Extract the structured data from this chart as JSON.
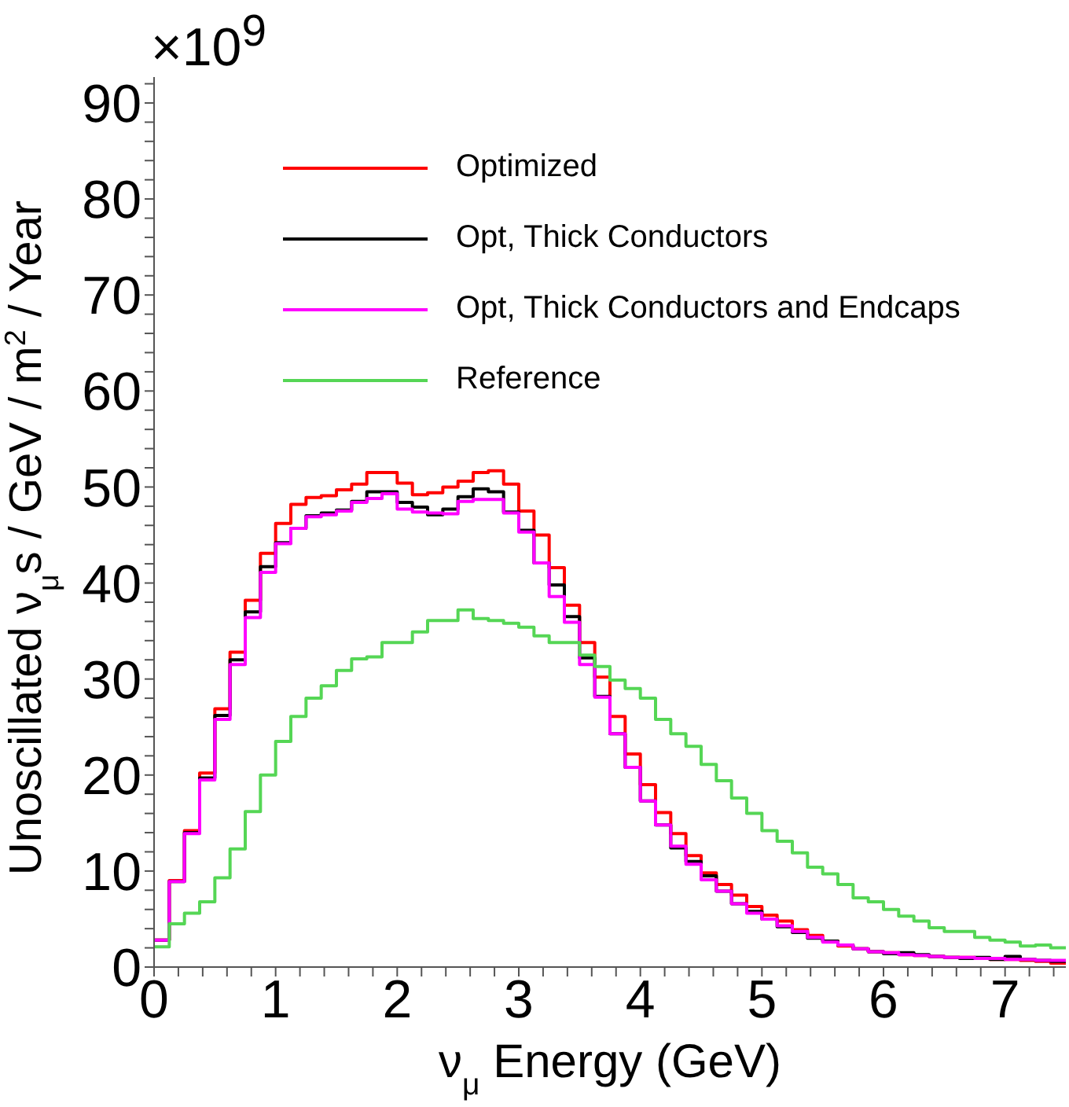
{
  "chart_data": {
    "type": "histogram",
    "xlabel": "ν$_{μ}$ Energy (GeV)",
    "ylabel": "Unoscillated ν$_{μ}$s / GeV / m$^{2}$ / Year",
    "annotations": [
      "×10$^{9}$"
    ],
    "bins": [
      0,
      0.125,
      0.25,
      0.375,
      0.5,
      0.625,
      0.75,
      0.875,
      1,
      1.125,
      1.25,
      1.375,
      1.5,
      1.625,
      1.75,
      1.875,
      2,
      2.125,
      2.25,
      2.375,
      2.5,
      2.625,
      2.75,
      2.875,
      3,
      3.125,
      3.25,
      3.375,
      3.5,
      3.625,
      3.75,
      3.875,
      4,
      4.125,
      4.25,
      4.375,
      4.5,
      4.625,
      4.75,
      4.875,
      5,
      5.125,
      5.25,
      5.375,
      5.5,
      5.625,
      5.75,
      5.875,
      6,
      6.125,
      6.25,
      6.375,
      6.5,
      6.625,
      6.75,
      6.875,
      7,
      7.125,
      7.25,
      7.375,
      7.5
    ],
    "series": [
      {
        "name": "Optimized",
        "color": "#ff0000",
        "values": [
          2.8,
          9.0,
          14.2,
          20.2,
          26.9,
          32.8,
          38.2,
          43.1,
          46.2,
          48.2,
          48.9,
          49.1,
          49.7,
          50.3,
          51.5,
          51.5,
          50.4,
          49.2,
          49.4,
          50.0,
          50.6,
          51.5,
          51.7,
          50.3,
          47.5,
          45.0,
          41.6,
          37.7,
          33.8,
          30.2,
          26.1,
          22.2,
          19.0,
          16.1,
          13.9,
          11.6,
          9.8,
          8.6,
          7.5,
          6.3,
          5.4,
          4.8,
          3.9,
          3.3,
          2.7,
          2.2,
          1.9,
          1.6,
          1.5,
          1.3,
          1.2,
          1.1,
          1.0,
          1.0,
          0.9,
          0.8,
          0.8,
          0.7,
          0.6,
          0.4
        ]
      },
      {
        "name": "Opt, Thick Conductors",
        "color": "#000000",
        "values": [
          2.8,
          8.9,
          14.0,
          19.7,
          26.2,
          32.0,
          37.0,
          41.7,
          44.2,
          45.7,
          47.0,
          47.3,
          47.6,
          48.5,
          49.5,
          49.5,
          48.4,
          47.9,
          47.1,
          47.7,
          49.0,
          49.8,
          49.5,
          47.4,
          45.5,
          42.1,
          39.8,
          36.5,
          32.2,
          28.2,
          24.3,
          20.8,
          17.3,
          14.8,
          12.4,
          11.0,
          9.5,
          7.9,
          6.6,
          5.8,
          5.0,
          4.2,
          3.6,
          3.0,
          2.7,
          2.3,
          1.9,
          1.6,
          1.4,
          1.5,
          1.3,
          1.1,
          1.0,
          0.9,
          1.0,
          0.8,
          1.1,
          0.8,
          0.7,
          0.6
        ]
      },
      {
        "name": "Opt, Thick Conductors and Endcaps",
        "color": "#ff00ff",
        "values": [
          2.8,
          8.9,
          13.9,
          19.5,
          25.8,
          31.5,
          36.4,
          41.1,
          44.1,
          45.7,
          46.9,
          47.1,
          47.5,
          48.4,
          48.8,
          49.3,
          47.7,
          47.4,
          47.3,
          47.2,
          48.5,
          48.7,
          48.7,
          47.3,
          45.3,
          42.1,
          38.6,
          35.9,
          31.5,
          28.1,
          24.3,
          20.8,
          17.3,
          14.8,
          12.6,
          10.7,
          9.1,
          7.9,
          6.6,
          5.6,
          5.0,
          4.3,
          3.7,
          3.1,
          2.6,
          2.3,
          1.9,
          1.6,
          1.5,
          1.3,
          1.2,
          1.1,
          1.0,
          1.0,
          0.9,
          0.9,
          0.8,
          0.8,
          0.7,
          0.7
        ]
      },
      {
        "name": "Reference",
        "color": "#55d655",
        "values": [
          2.1,
          4.5,
          5.6,
          6.8,
          9.3,
          12.3,
          16.2,
          20.0,
          23.5,
          26.1,
          28.0,
          29.3,
          30.9,
          32.1,
          32.3,
          33.8,
          33.8,
          34.9,
          36.1,
          36.1,
          37.2,
          36.3,
          36.1,
          35.8,
          35.4,
          34.5,
          33.8,
          33.8,
          32.5,
          31.3,
          29.9,
          29.0,
          28.0,
          25.8,
          24.3,
          23.0,
          21.1,
          19.4,
          17.6,
          16.0,
          14.2,
          13.1,
          11.9,
          10.4,
          9.7,
          8.6,
          7.2,
          6.8,
          6.0,
          5.3,
          4.8,
          4.1,
          3.7,
          3.7,
          3.1,
          2.8,
          2.6,
          2.2,
          2.3,
          2.0
        ]
      }
    ],
    "xlim": [
      0,
      7.5
    ],
    "xticks": [
      0,
      {
        "value": 0.2,
        "label": null
      },
      {
        "value": 0.4,
        "label": null
      },
      {
        "value": 0.6,
        "label": null
      },
      {
        "value": 0.8,
        "label": null
      },
      1,
      {
        "value": 1.2,
        "label": null
      },
      {
        "value": 1.4,
        "label": null
      },
      {
        "value": 1.6,
        "label": null
      },
      {
        "value": 1.8,
        "label": null
      },
      2,
      {
        "value": 2.2,
        "label": null
      },
      {
        "value": 2.4,
        "label": null
      },
      {
        "value": 2.6,
        "label": null
      },
      {
        "value": 2.8,
        "label": null
      },
      3,
      {
        "value": 3.2,
        "label": null
      },
      {
        "value": 3.4,
        "label": null
      },
      {
        "value": 3.6,
        "label": null
      },
      {
        "value": 3.8,
        "label": null
      },
      4,
      {
        "value": 4.2,
        "label": null
      },
      {
        "value": 4.4,
        "label": null
      },
      {
        "value": 4.6,
        "label": null
      },
      {
        "value": 4.8,
        "label": null
      },
      5,
      {
        "value": 5.2,
        "label": null
      },
      {
        "value": 5.4,
        "label": null
      },
      {
        "value": 5.6,
        "label": null
      },
      {
        "value": 5.8,
        "label": null
      },
      6,
      {
        "value": 6.2,
        "label": null
      },
      {
        "value": 6.4,
        "label": null
      },
      {
        "value": 6.6,
        "label": null
      },
      {
        "value": 6.8,
        "label": null
      },
      7,
      {
        "value": 7.2,
        "label": null
      },
      {
        "value": 7.4,
        "label": null
      }
    ],
    "ylim": [
      0,
      92.7
    ],
    "yticks": [
      0,
      {
        "value": 2,
        "label": null
      },
      {
        "value": 4,
        "label": null
      },
      {
        "value": 6,
        "label": null
      },
      {
        "value": 8,
        "label": null
      },
      10,
      {
        "value": 12,
        "label": null
      },
      {
        "value": 14,
        "label": null
      },
      {
        "value": 16,
        "label": null
      },
      {
        "value": 18,
        "label": null
      },
      20,
      {
        "value": 22,
        "label": null
      },
      {
        "value": 24,
        "label": null
      },
      {
        "value": 26,
        "label": null
      },
      {
        "value": 28,
        "label": null
      },
      30,
      {
        "value": 32,
        "label": null
      },
      {
        "value": 34,
        "label": null
      },
      {
        "value": 36,
        "label": null
      },
      {
        "value": 38,
        "label": null
      },
      40,
      {
        "value": 42,
        "label": null
      },
      {
        "value": 44,
        "label": null
      },
      {
        "value": 46,
        "label": null
      },
      {
        "value": 48,
        "label": null
      },
      50,
      {
        "value": 52,
        "label": null
      },
      {
        "value": 54,
        "label": null
      },
      {
        "value": 56,
        "label": null
      },
      {
        "value": 58,
        "label": null
      },
      60,
      {
        "value": 62,
        "label": null
      },
      {
        "value": 64,
        "label": null
      },
      {
        "value": 66,
        "label": null
      },
      {
        "value": 68,
        "label": null
      },
      70,
      {
        "value": 72,
        "label": null
      },
      {
        "value": 74,
        "label": null
      },
      {
        "value": 76,
        "label": null
      },
      {
        "value": 78,
        "label": null
      },
      80,
      {
        "value": 82,
        "label": null
      },
      {
        "value": 84,
        "label": null
      },
      {
        "value": 86,
        "label": null
      },
      {
        "value": 88,
        "label": null
      },
      90,
      {
        "value": 92,
        "label": null
      }
    ],
    "legend": "top left",
    "grid": false,
    "line_style": "solid"
  }
}
